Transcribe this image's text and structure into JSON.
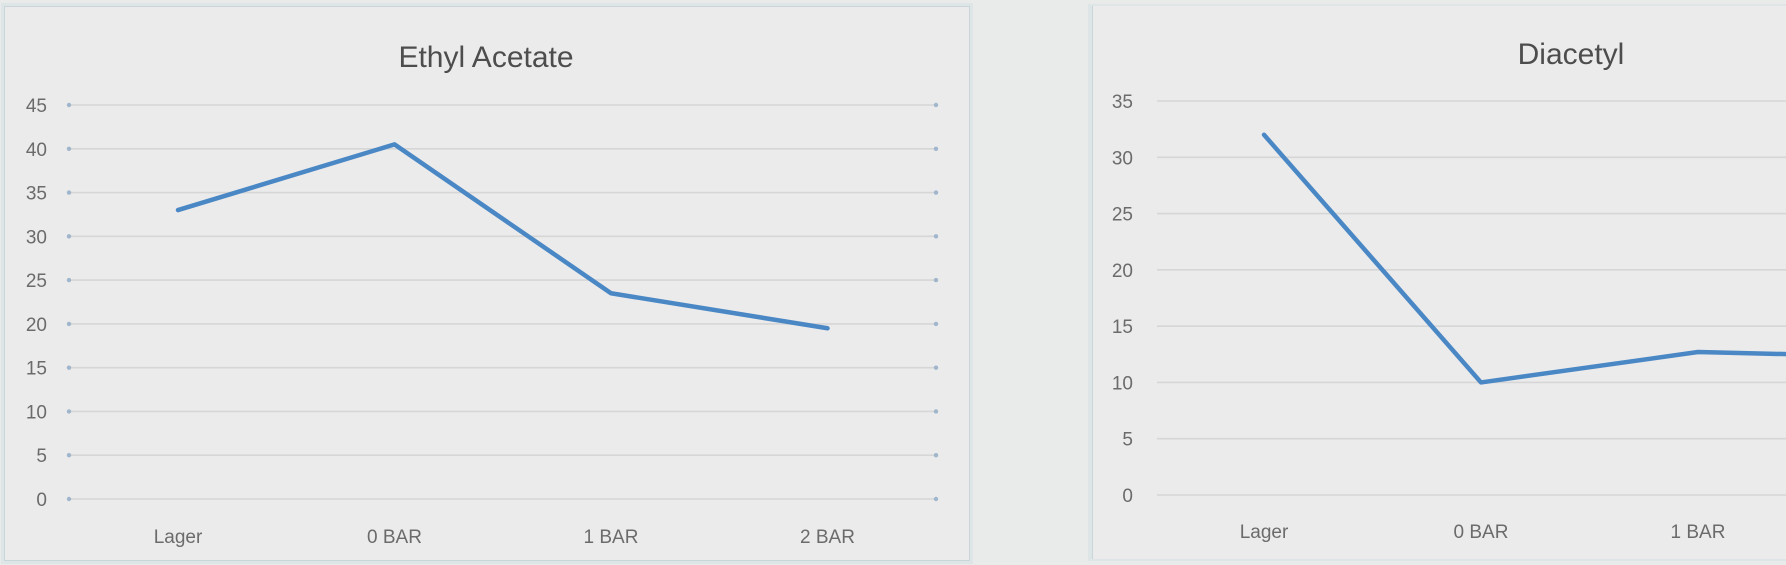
{
  "colors": {
    "background": "#ebebeb",
    "gridline": "#d6d6d6",
    "series_line": "#4a87c5",
    "tick_text": "#6b6b6b",
    "title_text": "#4d4d4d"
  },
  "chart_data": [
    {
      "type": "line",
      "title": "Ethyl Acetate",
      "categories": [
        "Lager",
        "0 BAR",
        "1 BAR",
        "2 BAR"
      ],
      "series": [
        {
          "values": [
            33,
            40.5,
            23.5,
            19.5
          ]
        }
      ],
      "yticks": [
        "0",
        "5",
        "10",
        "15",
        "20",
        "25",
        "30",
        "35",
        "40",
        "45"
      ],
      "ylim": [
        0,
        45
      ],
      "grid": true,
      "legend": "none"
    },
    {
      "type": "line",
      "title": "Diacetyl",
      "categories": [
        "Lager",
        "0 BAR",
        "1 BAR"
      ],
      "series": [
        {
          "values": [
            32,
            10,
            12.7
          ]
        }
      ],
      "series_continues_to": 12.5,
      "yticks": [
        "0",
        "5",
        "10",
        "15",
        "20",
        "25",
        "30",
        "35"
      ],
      "ylim": [
        0,
        35
      ],
      "grid": true,
      "legend": "none"
    }
  ]
}
